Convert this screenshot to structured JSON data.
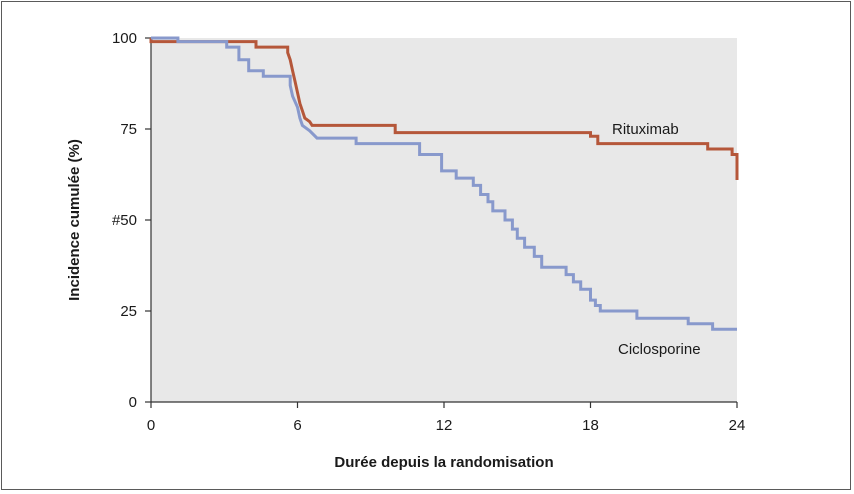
{
  "chart_data": {
    "type": "line",
    "step": true,
    "xlabel": "Durée depuis la randomisation",
    "ylabel": "Incidence cumulée (%)",
    "xlim": [
      0,
      24
    ],
    "ylim": [
      0,
      100
    ],
    "x_ticks": [
      "0",
      "6",
      "12",
      "18",
      "24"
    ],
    "y_ticks": [
      "0",
      "25",
      "#50",
      "75",
      "100"
    ],
    "background": "#e8e8e8",
    "series": [
      {
        "name": "Rituximab",
        "color": "#b5573a",
        "points": [
          [
            0,
            100
          ],
          [
            0,
            99
          ],
          [
            4.3,
            99
          ],
          [
            4.3,
            97.5
          ],
          [
            5.6,
            97.5
          ],
          [
            5.6,
            96
          ],
          [
            5.7,
            94
          ],
          [
            5.8,
            91
          ],
          [
            5.9,
            88
          ],
          [
            6.0,
            85
          ],
          [
            6.1,
            82
          ],
          [
            6.2,
            80
          ],
          [
            6.3,
            78
          ],
          [
            6.5,
            77
          ],
          [
            6.6,
            76
          ],
          [
            10.0,
            76
          ],
          [
            10.0,
            74
          ],
          [
            18.0,
            74
          ],
          [
            18.0,
            73
          ],
          [
            18.3,
            73
          ],
          [
            18.3,
            71
          ],
          [
            22.8,
            71
          ],
          [
            22.8,
            69.5
          ],
          [
            23.8,
            69.5
          ],
          [
            23.8,
            68
          ],
          [
            24.0,
            68
          ],
          [
            24.0,
            61
          ]
        ]
      },
      {
        "name": "Ciclosporine",
        "color": "#8899cc",
        "points": [
          [
            0,
            100
          ],
          [
            1.1,
            100
          ],
          [
            1.1,
            99
          ],
          [
            3.1,
            99
          ],
          [
            3.1,
            97.5
          ],
          [
            3.6,
            97.5
          ],
          [
            3.6,
            94
          ],
          [
            4.0,
            94
          ],
          [
            4.0,
            91
          ],
          [
            4.6,
            91
          ],
          [
            4.6,
            89.5
          ],
          [
            5.7,
            89.5
          ],
          [
            5.7,
            87
          ],
          [
            5.8,
            84
          ],
          [
            6.0,
            81
          ],
          [
            6.1,
            78
          ],
          [
            6.2,
            76
          ],
          [
            6.5,
            74.5
          ],
          [
            6.8,
            72.5
          ],
          [
            8.4,
            72.5
          ],
          [
            8.4,
            71
          ],
          [
            11.0,
            71
          ],
          [
            11.0,
            68
          ],
          [
            11.9,
            68
          ],
          [
            11.9,
            63.5
          ],
          [
            12.5,
            63.5
          ],
          [
            12.5,
            61.5
          ],
          [
            13.2,
            61.5
          ],
          [
            13.2,
            59.5
          ],
          [
            13.5,
            59.5
          ],
          [
            13.5,
            57
          ],
          [
            13.8,
            57
          ],
          [
            13.8,
            55
          ],
          [
            14.0,
            55
          ],
          [
            14.0,
            52.5
          ],
          [
            14.5,
            52.5
          ],
          [
            14.5,
            50
          ],
          [
            14.8,
            50
          ],
          [
            14.8,
            47.5
          ],
          [
            15.0,
            47.5
          ],
          [
            15.0,
            45
          ],
          [
            15.3,
            45
          ],
          [
            15.3,
            42.5
          ],
          [
            15.7,
            42.5
          ],
          [
            15.7,
            40
          ],
          [
            16.0,
            40
          ],
          [
            16.0,
            37
          ],
          [
            17.0,
            37
          ],
          [
            17.0,
            35
          ],
          [
            17.3,
            35
          ],
          [
            17.3,
            33
          ],
          [
            17.6,
            33
          ],
          [
            17.6,
            31
          ],
          [
            18.0,
            31
          ],
          [
            18.0,
            28
          ],
          [
            18.2,
            28
          ],
          [
            18.2,
            26.5
          ],
          [
            18.4,
            26.5
          ],
          [
            18.4,
            25
          ],
          [
            19.9,
            25
          ],
          [
            19.9,
            23
          ],
          [
            22.0,
            23
          ],
          [
            22.0,
            21.5
          ],
          [
            23.0,
            21.5
          ],
          [
            23.0,
            20
          ],
          [
            24.0,
            20
          ]
        ]
      }
    ]
  }
}
